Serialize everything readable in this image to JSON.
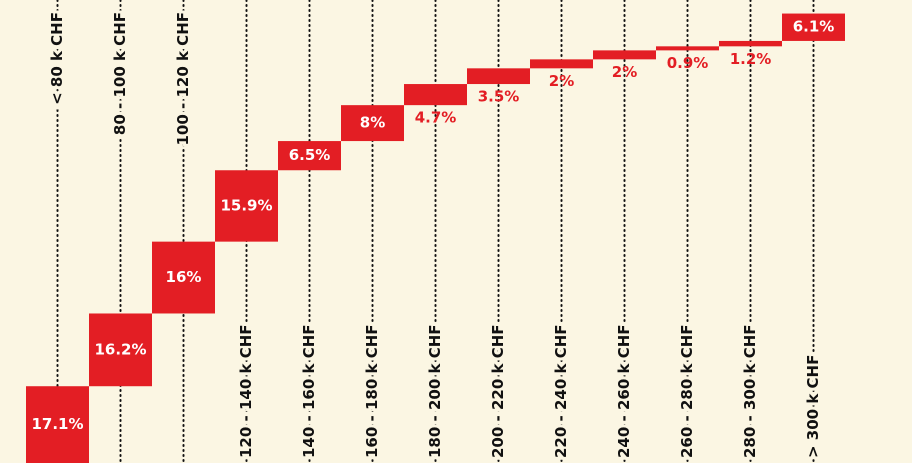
{
  "chart_data": {
    "type": "waterfall",
    "categories": [
      "< 80 k CHF",
      "80 - 100 k CHF",
      "100 - 120 k CHF",
      "120 - 140 k CHF",
      "140 - 160 k CHF",
      "160 - 180 k CHF",
      "180 - 200 k CHF",
      "200 - 220 k CHF",
      "220 - 240 k CHF",
      "240 - 260 k CHF",
      "260 - 280 k CHF",
      "280 - 300 k CHF",
      "> 300 k CHF"
    ],
    "values": [
      17.1,
      16.2,
      16,
      15.9,
      6.5,
      8,
      4.7,
      3.5,
      2,
      2,
      0.9,
      1.2,
      6.1
    ],
    "value_labels": [
      "17.1%",
      "16.2%",
      "16%",
      "15.9%",
      "6.5%",
      "8%",
      "4.7%",
      "3.5%",
      "2%",
      "2%",
      "0.9%",
      "1.2%",
      "6.1%"
    ],
    "color": "#e31e24",
    "ylim": [
      0,
      100
    ]
  }
}
